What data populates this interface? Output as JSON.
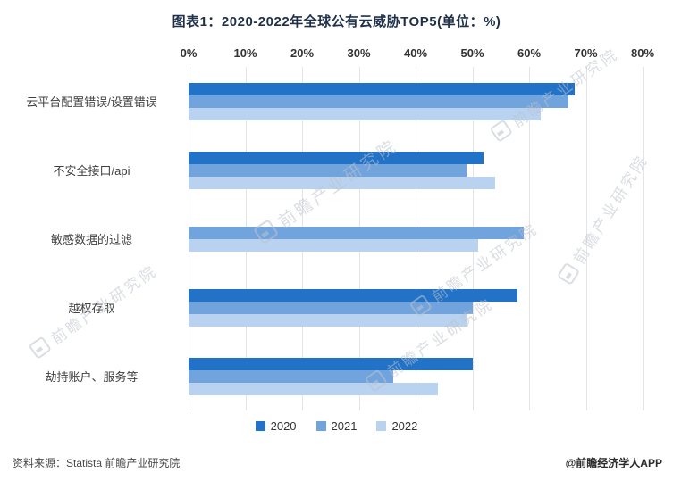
{
  "title": "图表1：2020-2022年全球公有云威胁TOP5(单位：%)",
  "chart_data": {
    "type": "bar",
    "orientation": "horizontal",
    "title": "图表1：2020-2022年全球公有云威胁TOP5(单位：%)",
    "categories": [
      "云平台配置错误/设置错误",
      "不安全接口/api",
      "敏感数据的过滤",
      "越权存取",
      "劫持账户、服务等"
    ],
    "series": [
      {
        "name": "2020",
        "color": "#2273c7",
        "values": [
          68,
          52,
          null,
          58,
          50
        ]
      },
      {
        "name": "2021",
        "color": "#71a3dc",
        "values": [
          67,
          49,
          59,
          50,
          36
        ]
      },
      {
        "name": "2022",
        "color": "#b9d2f0",
        "values": [
          62,
          54,
          51,
          49,
          44
        ]
      }
    ],
    "x_axis": {
      "min": 0,
      "max": 80,
      "tick_step": 10,
      "ticks": [
        "0%",
        "10%",
        "20%",
        "30%",
        "40%",
        "50%",
        "60%",
        "70%",
        "80%"
      ],
      "unit": "%",
      "position": "top"
    },
    "grid": true,
    "legend_position": "bottom"
  },
  "watermark": {
    "text": "前瞻产业研究院",
    "logo": "qianzhan-logo"
  },
  "footer": {
    "source": "资料来源：Statista 前瞻产业研究院",
    "brand": "@前瞻经济学人APP"
  }
}
